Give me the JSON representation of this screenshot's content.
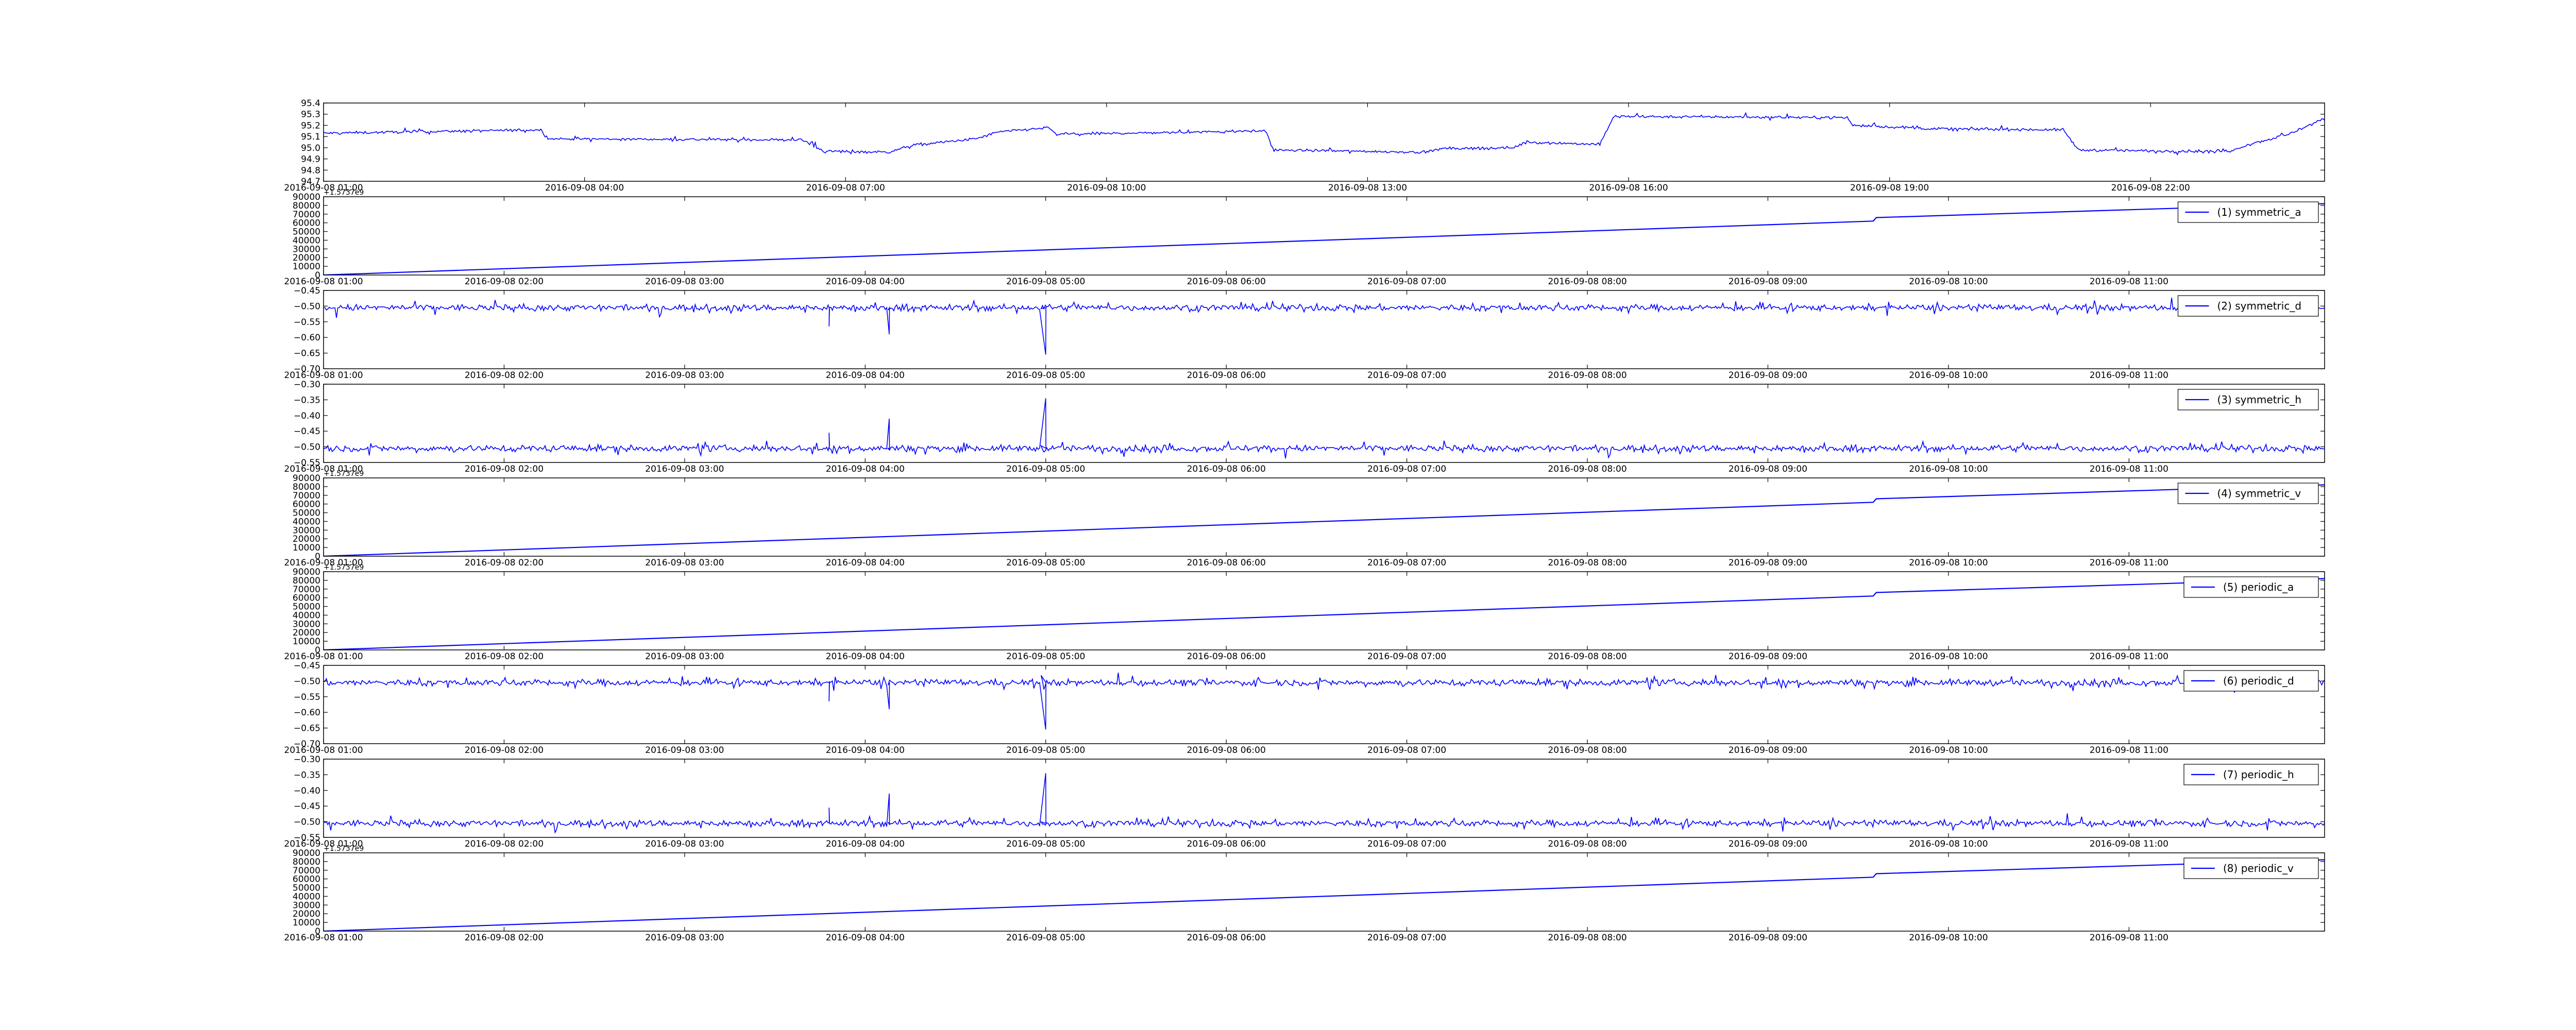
{
  "figure": {
    "background": "#ffffff",
    "series_color": "#0000ff",
    "axes_color": "#000000",
    "panel_count": 9
  },
  "chart_data": [
    {
      "type": "line",
      "panel": "main-series",
      "title": "",
      "xlabel": "",
      "ylabel": "",
      "legend": null,
      "grid": false,
      "x_range": [
        "2016-09-08 01:00",
        "2016-09-09 00:00"
      ],
      "ylim": [
        94.7,
        95.4
      ],
      "yticks": [
        "95.4",
        "95.3",
        "95.2",
        "95.1",
        "95.0",
        "94.9",
        "94.8",
        "94.7"
      ],
      "xticks": [
        "2016-09-08 01:00",
        "2016-09-08 04:00",
        "2016-09-08 07:00",
        "2016-09-08 10:00",
        "2016-09-08 13:00",
        "2016-09-08 16:00",
        "2016-09-08 19:00",
        "2016-09-08 22:00"
      ],
      "noise": 0.012,
      "x": [
        "2016-09-08 01:00",
        "2016-09-08 03:30",
        "2016-09-08 03:35",
        "2016-09-08 06:30",
        "2016-09-08 06:45",
        "2016-09-08 07:30",
        "2016-09-08 07:45",
        "2016-09-08 08:30",
        "2016-09-08 08:45",
        "2016-09-08 09:20",
        "2016-09-08 09:25",
        "2016-09-08 11:50",
        "2016-09-08 11:55",
        "2016-09-08 13:40",
        "2016-09-08 13:50",
        "2016-09-08 14:40",
        "2016-09-08 14:50",
        "2016-09-08 15:40",
        "2016-09-08 15:50",
        "2016-09-08 18:30",
        "2016-09-08 18:35",
        "2016-09-08 19:30",
        "2016-09-08 21:00",
        "2016-09-08 21:10",
        "2016-09-08 22:15",
        "2016-09-08 22:30",
        "2016-09-08 22:55",
        "2016-09-08 23:05",
        "2016-09-08 23:35",
        "2016-09-09 00:00"
      ],
      "y": [
        95.13,
        95.16,
        95.08,
        95.07,
        94.97,
        94.96,
        95.02,
        95.08,
        95.14,
        95.18,
        95.12,
        95.15,
        94.98,
        94.96,
        94.99,
        95.0,
        95.05,
        95.03,
        95.28,
        95.27,
        95.2,
        95.17,
        95.16,
        94.98,
        94.97,
        94.97,
        94.97,
        95.02,
        95.12,
        95.26
      ]
    },
    {
      "type": "line",
      "panel": "symmetric_a",
      "legend": "(1) symmetric_a",
      "grid": false,
      "x_range": [
        "2016-09-08 01:00",
        "2016-09-08 12:05"
      ],
      "ylim": [
        0,
        90000
      ],
      "y_offset_label": "+1.5737e9",
      "yticks": [
        "90000",
        "80000",
        "70000",
        "60000",
        "50000",
        "40000",
        "30000",
        "20000",
        "10000",
        "0"
      ],
      "xticks": [
        "2016-09-08 01:00",
        "2016-09-08 02:00",
        "2016-09-08 03:00",
        "2016-09-08 04:00",
        "2016-09-08 05:00",
        "2016-09-08 06:00",
        "2016-09-08 07:00",
        "2016-09-08 08:00",
        "2016-09-08 09:00",
        "2016-09-08 10:00",
        "2016-09-08 11:00"
      ],
      "noise": 0,
      "x": [
        "2016-09-08 01:00",
        "2016-09-08 09:35",
        "2016-09-08 09:36",
        "2016-09-08 12:05"
      ],
      "y": [
        0,
        62000,
        66000,
        82000
      ]
    },
    {
      "type": "line",
      "panel": "symmetric_d",
      "legend": "(2) symmetric_d",
      "grid": false,
      "x_range": [
        "2016-09-08 01:00",
        "2016-09-08 12:05"
      ],
      "ylim": [
        -0.7,
        -0.45
      ],
      "yticks": [
        "−0.45",
        "−0.50",
        "−0.55",
        "−0.60",
        "−0.65",
        "−0.70"
      ],
      "xticks": [
        "2016-09-08 01:00",
        "2016-09-08 02:00",
        "2016-09-08 03:00",
        "2016-09-08 04:00",
        "2016-09-08 05:00",
        "2016-09-08 06:00",
        "2016-09-08 07:00",
        "2016-09-08 08:00",
        "2016-09-08 09:00",
        "2016-09-08 10:00",
        "2016-09-08 11:00"
      ],
      "noise": 0.01,
      "x": [
        "2016-09-08 01:00",
        "2016-09-08 12:05"
      ],
      "y": [
        -0.505,
        -0.505
      ],
      "spikes": [
        {
          "x": "2016-09-08 03:48",
          "y": -0.565
        },
        {
          "x": "2016-09-08 04:08",
          "y": -0.59
        },
        {
          "x": "2016-09-08 05:00",
          "y": -0.655
        }
      ]
    },
    {
      "type": "line",
      "panel": "symmetric_h",
      "legend": "(3) symmetric_h",
      "grid": false,
      "x_range": [
        "2016-09-08 01:00",
        "2016-09-08 12:05"
      ],
      "ylim": [
        -0.55,
        -0.3
      ],
      "yticks": [
        "−0.30",
        "−0.35",
        "−0.40",
        "−0.45",
        "−0.50",
        "−0.55"
      ],
      "xticks": [
        "2016-09-08 01:00",
        "2016-09-08 02:00",
        "2016-09-08 03:00",
        "2016-09-08 04:00",
        "2016-09-08 05:00",
        "2016-09-08 06:00",
        "2016-09-08 07:00",
        "2016-09-08 08:00",
        "2016-09-08 09:00",
        "2016-09-08 10:00",
        "2016-09-08 11:00"
      ],
      "noise": 0.01,
      "x": [
        "2016-09-08 01:00",
        "2016-09-08 12:05"
      ],
      "y": [
        -0.505,
        -0.505
      ],
      "spikes": [
        {
          "x": "2016-09-08 03:48",
          "y": -0.455
        },
        {
          "x": "2016-09-08 04:08",
          "y": -0.41
        },
        {
          "x": "2016-09-08 05:00",
          "y": -0.345
        }
      ]
    },
    {
      "type": "line",
      "panel": "symmetric_v",
      "legend": "(4) symmetric_v",
      "grid": false,
      "x_range": [
        "2016-09-08 01:00",
        "2016-09-08 12:05"
      ],
      "ylim": [
        0,
        90000
      ],
      "y_offset_label": "+1.5737e9",
      "yticks": [
        "90000",
        "80000",
        "70000",
        "60000",
        "50000",
        "40000",
        "30000",
        "20000",
        "10000",
        "0"
      ],
      "xticks": [
        "2016-09-08 01:00",
        "2016-09-08 02:00",
        "2016-09-08 03:00",
        "2016-09-08 04:00",
        "2016-09-08 05:00",
        "2016-09-08 06:00",
        "2016-09-08 07:00",
        "2016-09-08 08:00",
        "2016-09-08 09:00",
        "2016-09-08 10:00",
        "2016-09-08 11:00"
      ],
      "noise": 0,
      "x": [
        "2016-09-08 01:00",
        "2016-09-08 09:35",
        "2016-09-08 09:36",
        "2016-09-08 12:05"
      ],
      "y": [
        0,
        62000,
        66000,
        82000
      ]
    },
    {
      "type": "line",
      "panel": "periodic_a",
      "legend": "(5) periodic_a",
      "grid": false,
      "x_range": [
        "2016-09-08 01:00",
        "2016-09-08 12:05"
      ],
      "ylim": [
        0,
        90000
      ],
      "y_offset_label": "+1.5737e9",
      "yticks": [
        "90000",
        "80000",
        "70000",
        "60000",
        "50000",
        "40000",
        "30000",
        "20000",
        "10000",
        "0"
      ],
      "xticks": [
        "2016-09-08 01:00",
        "2016-09-08 02:00",
        "2016-09-08 03:00",
        "2016-09-08 04:00",
        "2016-09-08 05:00",
        "2016-09-08 06:00",
        "2016-09-08 07:00",
        "2016-09-08 08:00",
        "2016-09-08 09:00",
        "2016-09-08 10:00",
        "2016-09-08 11:00"
      ],
      "noise": 0,
      "x": [
        "2016-09-08 01:00",
        "2016-09-08 09:35",
        "2016-09-08 09:36",
        "2016-09-08 12:05"
      ],
      "y": [
        0,
        62000,
        66000,
        82000
      ]
    },
    {
      "type": "line",
      "panel": "periodic_d",
      "legend": "(6) periodic_d",
      "grid": false,
      "x_range": [
        "2016-09-08 01:00",
        "2016-09-08 12:05"
      ],
      "ylim": [
        -0.7,
        -0.45
      ],
      "yticks": [
        "−0.45",
        "−0.50",
        "−0.55",
        "−0.60",
        "−0.65",
        "−0.70"
      ],
      "xticks": [
        "2016-09-08 01:00",
        "2016-09-08 02:00",
        "2016-09-08 03:00",
        "2016-09-08 04:00",
        "2016-09-08 05:00",
        "2016-09-08 06:00",
        "2016-09-08 07:00",
        "2016-09-08 08:00",
        "2016-09-08 09:00",
        "2016-09-08 10:00",
        "2016-09-08 11:00"
      ],
      "noise": 0.01,
      "x": [
        "2016-09-08 01:00",
        "2016-09-08 12:05"
      ],
      "y": [
        -0.505,
        -0.505
      ],
      "spikes": [
        {
          "x": "2016-09-08 03:48",
          "y": -0.565
        },
        {
          "x": "2016-09-08 04:08",
          "y": -0.59
        },
        {
          "x": "2016-09-08 05:00",
          "y": -0.655
        }
      ]
    },
    {
      "type": "line",
      "panel": "periodic_h",
      "legend": "(7) periodic_h",
      "grid": false,
      "x_range": [
        "2016-09-08 01:00",
        "2016-09-08 12:05"
      ],
      "ylim": [
        -0.55,
        -0.3
      ],
      "yticks": [
        "−0.30",
        "−0.35",
        "−0.40",
        "−0.45",
        "−0.50",
        "−0.55"
      ],
      "xticks": [
        "2016-09-08 01:00",
        "2016-09-08 02:00",
        "2016-09-08 03:00",
        "2016-09-08 04:00",
        "2016-09-08 05:00",
        "2016-09-08 06:00",
        "2016-09-08 07:00",
        "2016-09-08 08:00",
        "2016-09-08 09:00",
        "2016-09-08 10:00",
        "2016-09-08 11:00"
      ],
      "noise": 0.01,
      "x": [
        "2016-09-08 01:00",
        "2016-09-08 12:05"
      ],
      "y": [
        -0.505,
        -0.505
      ],
      "spikes": [
        {
          "x": "2016-09-08 03:48",
          "y": -0.455
        },
        {
          "x": "2016-09-08 04:08",
          "y": -0.41
        },
        {
          "x": "2016-09-08 05:00",
          "y": -0.345
        }
      ]
    },
    {
      "type": "line",
      "panel": "periodic_v",
      "legend": "(8) periodic_v",
      "grid": false,
      "x_range": [
        "2016-09-08 01:00",
        "2016-09-08 12:05"
      ],
      "ylim": [
        0,
        90000
      ],
      "y_offset_label": "+1.5737e9",
      "yticks": [
        "90000",
        "80000",
        "70000",
        "60000",
        "50000",
        "40000",
        "30000",
        "20000",
        "10000",
        "0"
      ],
      "xticks": [
        "2016-09-08 01:00",
        "2016-09-08 02:00",
        "2016-09-08 03:00",
        "2016-09-08 04:00",
        "2016-09-08 05:00",
        "2016-09-08 06:00",
        "2016-09-08 07:00",
        "2016-09-08 08:00",
        "2016-09-08 09:00",
        "2016-09-08 10:00",
        "2016-09-08 11:00"
      ],
      "noise": 0,
      "x": [
        "2016-09-08 01:00",
        "2016-09-08 09:35",
        "2016-09-08 09:36",
        "2016-09-08 12:05"
      ],
      "y": [
        0,
        62000,
        66000,
        82000
      ]
    }
  ]
}
